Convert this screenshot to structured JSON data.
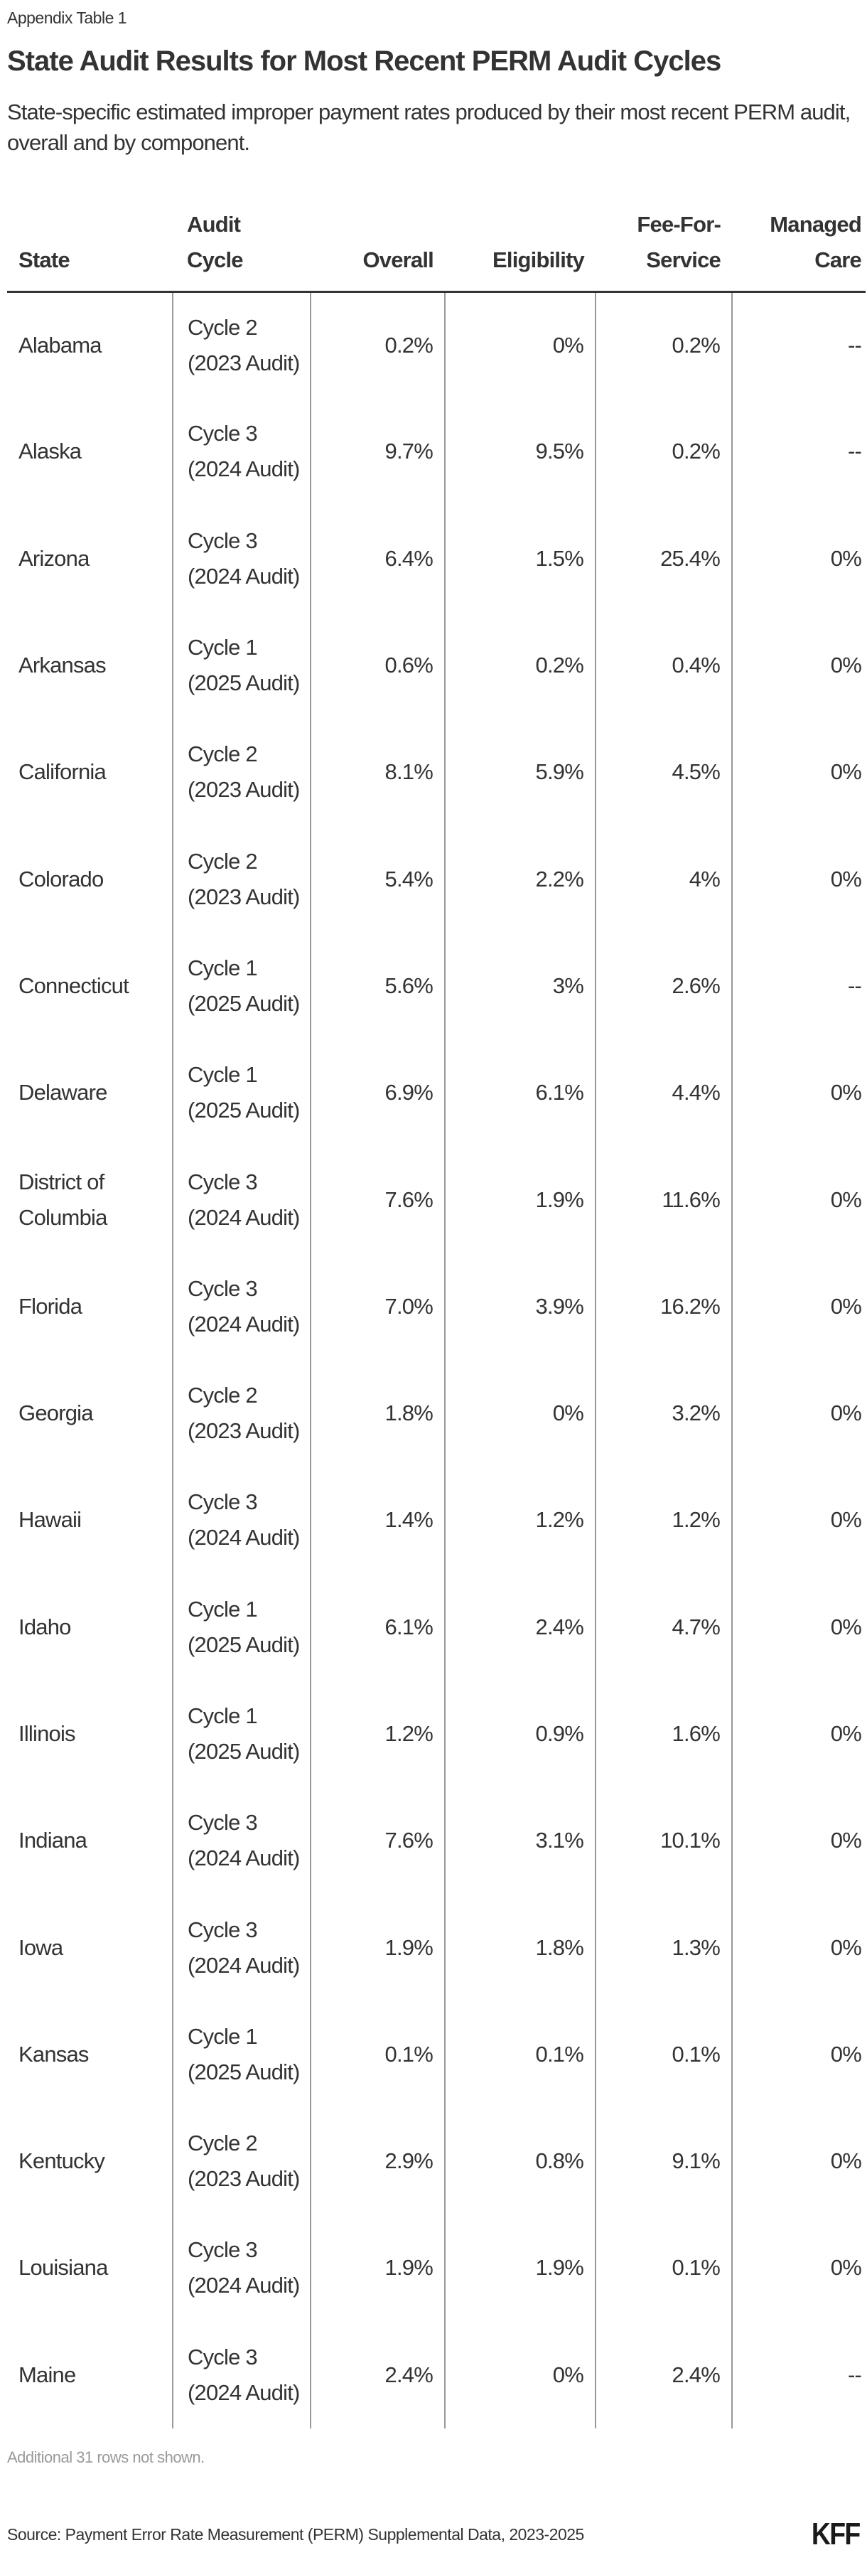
{
  "header": {
    "label": "Appendix Table 1",
    "title": "State Audit Results for Most Recent PERM Audit Cycles",
    "subtitle": "State-specific estimated improper payment rates produced by their most recent PERM audit, overall and by component."
  },
  "table": {
    "columns": [
      {
        "key": "state",
        "label": "State",
        "align": "left"
      },
      {
        "key": "cycle",
        "label": "Audit Cycle",
        "align": "left"
      },
      {
        "key": "overall",
        "label": "Overall",
        "align": "right"
      },
      {
        "key": "eligibility",
        "label": "Eligibility",
        "align": "right"
      },
      {
        "key": "ffs",
        "label": "Fee-For-Service",
        "align": "right"
      },
      {
        "key": "managed",
        "label": "Managed Care",
        "align": "right"
      }
    ],
    "rows": [
      [
        "Alabama",
        "Cycle 2 (2023 Audit)",
        "0.2%",
        "0%",
        "0.2%",
        "--"
      ],
      [
        "Alaska",
        "Cycle 3 (2024 Audit)",
        "9.7%",
        "9.5%",
        "0.2%",
        "--"
      ],
      [
        "Arizona",
        "Cycle 3 (2024 Audit)",
        "6.4%",
        "1.5%",
        "25.4%",
        "0%"
      ],
      [
        "Arkansas",
        "Cycle 1 (2025 Audit)",
        "0.6%",
        "0.2%",
        "0.4%",
        "0%"
      ],
      [
        "California",
        "Cycle 2 (2023 Audit)",
        "8.1%",
        "5.9%",
        "4.5%",
        "0%"
      ],
      [
        "Colorado",
        "Cycle 2 (2023 Audit)",
        "5.4%",
        "2.2%",
        "4%",
        "0%"
      ],
      [
        "Connecticut",
        "Cycle 1 (2025 Audit)",
        "5.6%",
        "3%",
        "2.6%",
        "--"
      ],
      [
        "Delaware",
        "Cycle 1 (2025 Audit)",
        "6.9%",
        "6.1%",
        "4.4%",
        "0%"
      ],
      [
        "District of Columbia",
        "Cycle 3 (2024 Audit)",
        "7.6%",
        "1.9%",
        "11.6%",
        "0%"
      ],
      [
        "Florida",
        "Cycle 3 (2024 Audit)",
        "7.0%",
        "3.9%",
        "16.2%",
        "0%"
      ],
      [
        "Georgia",
        "Cycle 2 (2023 Audit)",
        "1.8%",
        "0%",
        "3.2%",
        "0%"
      ],
      [
        "Hawaii",
        "Cycle 3 (2024 Audit)",
        "1.4%",
        "1.2%",
        "1.2%",
        "0%"
      ],
      [
        "Idaho",
        "Cycle 1 (2025 Audit)",
        "6.1%",
        "2.4%",
        "4.7%",
        "0%"
      ],
      [
        "Illinois",
        "Cycle 1 (2025 Audit)",
        "1.2%",
        "0.9%",
        "1.6%",
        "0%"
      ],
      [
        "Indiana",
        "Cycle 3 (2024 Audit)",
        "7.6%",
        "3.1%",
        "10.1%",
        "0%"
      ],
      [
        "Iowa",
        "Cycle 3 (2024 Audit)",
        "1.9%",
        "1.8%",
        "1.3%",
        "0%"
      ],
      [
        "Kansas",
        "Cycle 1 (2025 Audit)",
        "0.1%",
        "0.1%",
        "0.1%",
        "0%"
      ],
      [
        "Kentucky",
        "Cycle 2 (2023 Audit)",
        "2.9%",
        "0.8%",
        "9.1%",
        "0%"
      ],
      [
        "Louisiana",
        "Cycle 3 (2024 Audit)",
        "1.9%",
        "1.9%",
        "0.1%",
        "0%"
      ],
      [
        "Maine",
        "Cycle 3 (2024 Audit)",
        "2.4%",
        "0%",
        "2.4%",
        "--"
      ]
    ]
  },
  "footer": {
    "notes": "Additional 31 rows not shown.",
    "source": "Source: Payment Error Rate Measurement (PERM) Supplemental Data, 2023-2025",
    "logo": "KFF"
  },
  "colors": {
    "text": "#333333",
    "muted": "#999999",
    "rule": "#333333",
    "column_divider": "#999999",
    "background": "#ffffff"
  }
}
